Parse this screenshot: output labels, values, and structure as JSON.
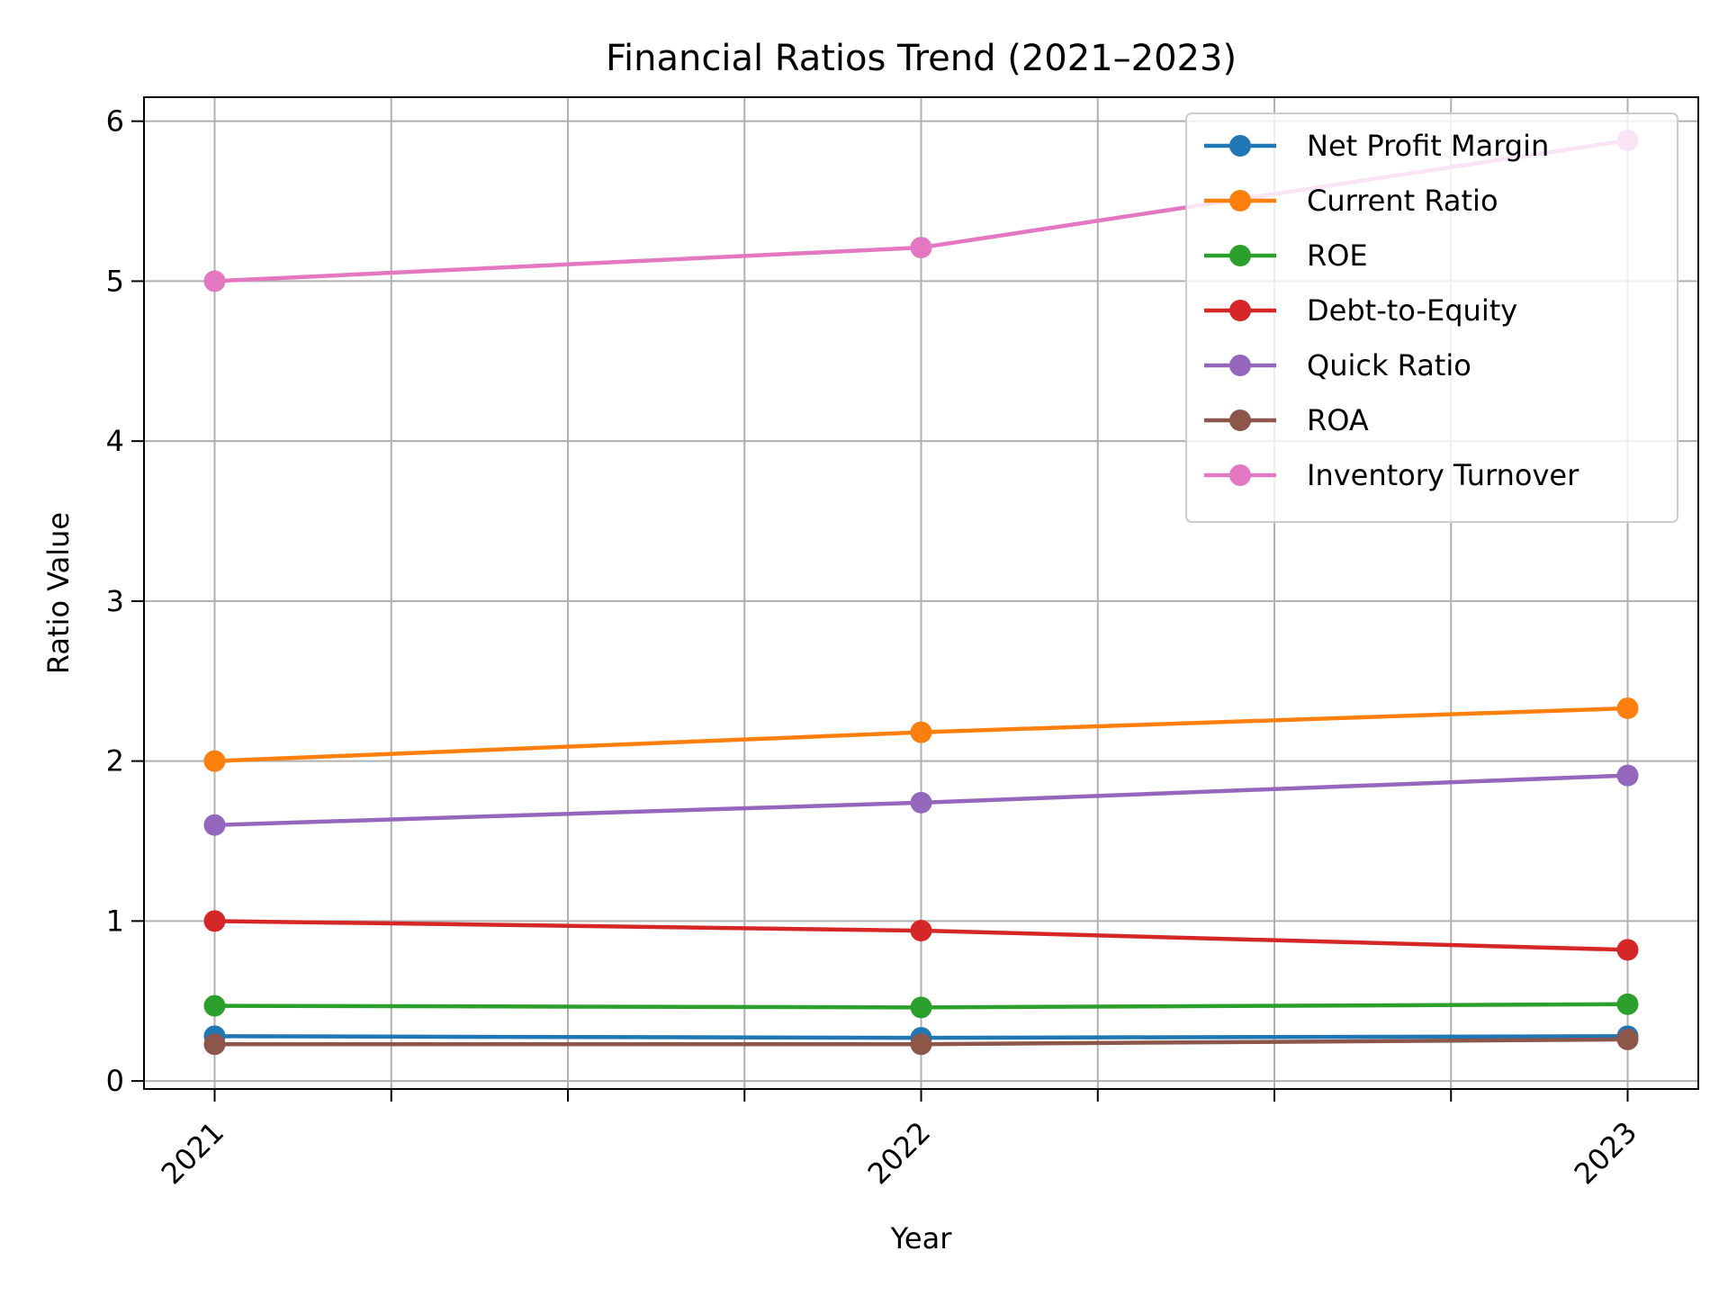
{
  "chart_data": {
    "type": "line",
    "title": "Financial Ratios Trend (2021–2023)",
    "xlabel": "Year",
    "ylabel": "Ratio Value",
    "x": [
      2021,
      2022,
      2023
    ],
    "x_tick_labels": [
      "2021",
      "2022",
      "2023"
    ],
    "x_minor_ticks": true,
    "ylim": [
      -0.05,
      6.15
    ],
    "y_ticks": [
      0,
      1,
      2,
      3,
      4,
      5,
      6
    ],
    "grid": true,
    "legend_position": "top-right",
    "series": [
      {
        "name": "Net Profit Margin",
        "color": "#1f77b4",
        "values": [
          0.28,
          0.27,
          0.28
        ]
      },
      {
        "name": "Current Ratio",
        "color": "#ff7f0e",
        "values": [
          2.0,
          2.18,
          2.33
        ]
      },
      {
        "name": "ROE",
        "color": "#2ca02c",
        "values": [
          0.47,
          0.46,
          0.48
        ]
      },
      {
        "name": "Debt-to-Equity",
        "color": "#d62728",
        "values": [
          1.0,
          0.94,
          0.82
        ]
      },
      {
        "name": "Quick Ratio",
        "color": "#9467bd",
        "values": [
          1.6,
          1.74,
          1.91
        ]
      },
      {
        "name": "ROA",
        "color": "#8c564b",
        "values": [
          0.23,
          0.23,
          0.26
        ]
      },
      {
        "name": "Inventory Turnover",
        "color": "#e377c2",
        "values": [
          5.0,
          5.21,
          5.88
        ]
      }
    ]
  }
}
